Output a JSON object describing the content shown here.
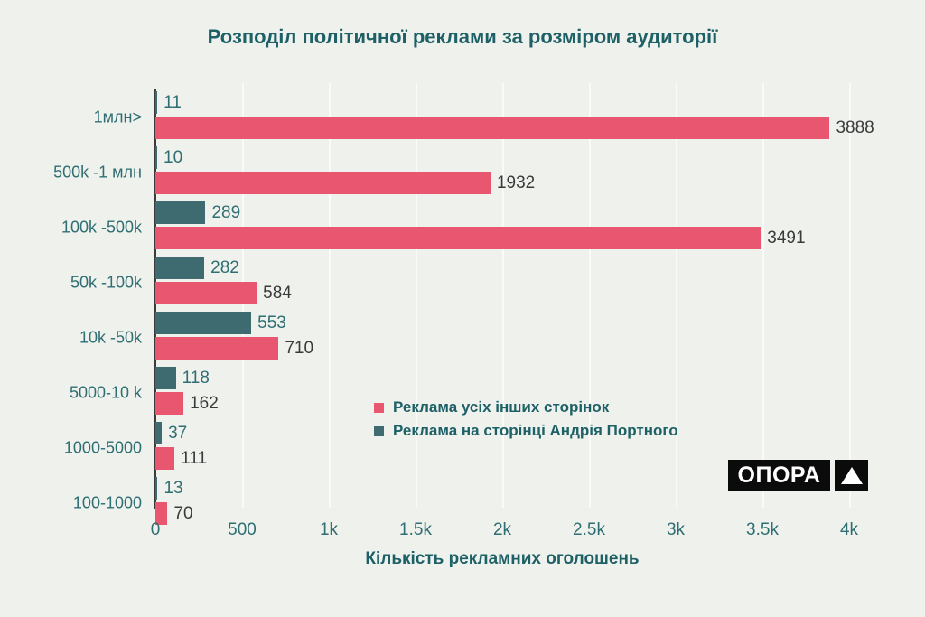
{
  "title": "Розподіл політичної реклами за розміром аудиторії",
  "chart_data": {
    "type": "bar",
    "orientation": "horizontal",
    "title": "Розподіл політичної реклами за розміром аудиторії",
    "xlabel": "Кількість рекламних оголошень",
    "ylabel": "",
    "categories": [
      "1млн>",
      "500k -1 млн",
      "100k -500k",
      "50k -100k",
      "10k -50k",
      "5000-10 k",
      "1000-5000",
      "100-1000"
    ],
    "series": [
      {
        "name": "Реклама усіх інших сторінок",
        "color": "#e8566f",
        "values": [
          3888,
          1932,
          3491,
          584,
          710,
          162,
          111,
          70
        ]
      },
      {
        "name": "Реклама на сторінці Андрія Портного",
        "color": "#3e6b6f",
        "values": [
          11,
          10,
          289,
          282,
          553,
          118,
          37,
          13
        ]
      }
    ],
    "xlim": [
      0,
      4000
    ],
    "xticks": [
      "0",
      "500",
      "1k",
      "1.5k",
      "2k",
      "2.5k",
      "3k",
      "3.5k",
      "4k"
    ],
    "grid": true,
    "legend_position": "center-right"
  },
  "colors": {
    "background": "#eff1ed",
    "pink_series": "#e8566f",
    "teal_series": "#3e6b6f",
    "title_text": "#1d6066",
    "tick_text": "#2f6e72",
    "value_text_dark": "#3a3a3a",
    "axis_line": "#3b3b3b",
    "gridline": "#fafbf9"
  },
  "logo": {
    "text": "ОПОРА",
    "icon": "triangle-up"
  }
}
